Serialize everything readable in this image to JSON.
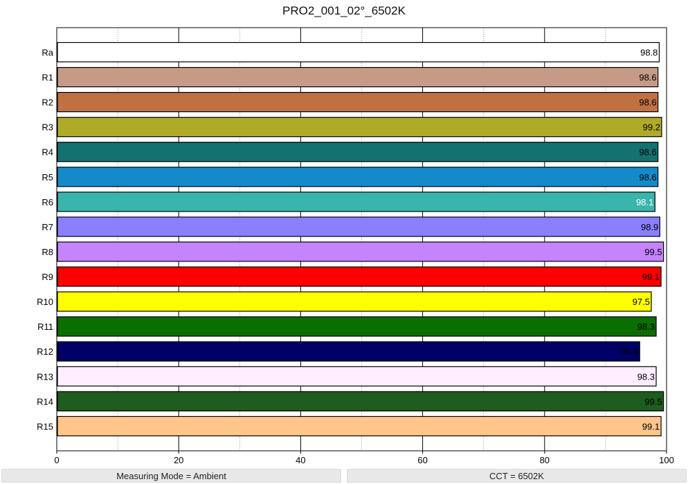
{
  "chart_data": {
    "type": "bar",
    "orientation": "horizontal",
    "title": "PRO2_001_02°_6502K",
    "xlim": [
      0,
      100
    ],
    "x_ticks": [
      0,
      20,
      40,
      60,
      80,
      100
    ],
    "grid": "vertical-major-solid-minor-dotted",
    "categories": [
      "Ra",
      "R1",
      "R2",
      "R3",
      "R4",
      "R5",
      "R6",
      "R7",
      "R8",
      "R9",
      "R10",
      "R11",
      "R12",
      "R13",
      "R14",
      "R15"
    ],
    "values": [
      98.8,
      98.6,
      98.6,
      99.2,
      98.6,
      98.6,
      98.1,
      98.9,
      99.5,
      99.1,
      97.5,
      98.3,
      95.6,
      98.3,
      99.5,
      99.1
    ],
    "value_labels": [
      "98.8",
      "98.6",
      "98.6",
      "99.2",
      "98.6",
      "98.6",
      "98.1",
      "98.9",
      "99.5",
      "99.1",
      "97.5",
      "98.3",
      "95.6",
      "98.3",
      "99.5",
      "99.1"
    ],
    "colors": [
      "#ffffff",
      "#c59a86",
      "#bf7144",
      "#b0aa29",
      "#13716f",
      "#158ac8",
      "#38b5ad",
      "#8a80ff",
      "#c583ff",
      "#ff0000",
      "#ffff00",
      "#0b6e00",
      "#000066",
      "#ffeeff",
      "#1f5c1f",
      "#ffc58a"
    ],
    "label_colors": [
      "#000000",
      "#000000",
      "#000000",
      "#000000",
      "#000000",
      "#000000",
      "#ffffff",
      "#000000",
      "#000000",
      "#000000",
      "#000000",
      "#000000",
      "#000000",
      "#000000",
      "#000000",
      "#000000"
    ]
  },
  "status": {
    "left": "Measuring Mode = Ambient",
    "right": "CCT = 6502K"
  }
}
